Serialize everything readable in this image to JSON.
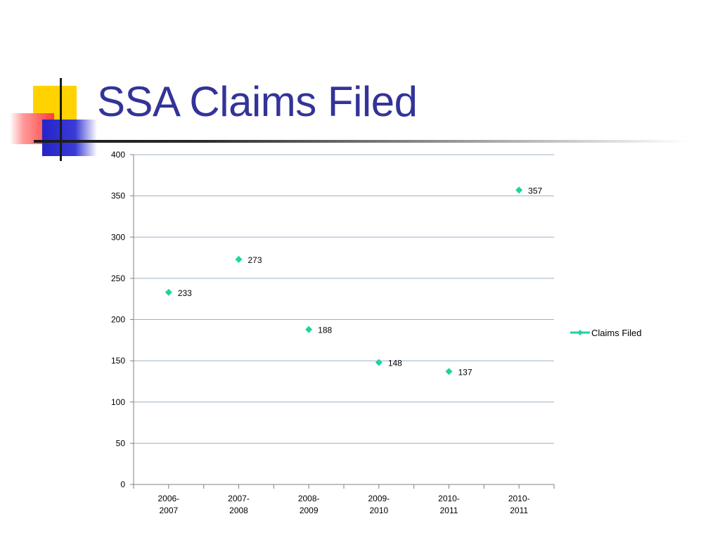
{
  "slide": {
    "title": "SSA Claims Filed"
  },
  "colors": {
    "title": "#333399",
    "series": "#1fd3a0",
    "grid": "#9fb0c8",
    "axis": "#808080",
    "text": "#000000"
  },
  "chart_data": {
    "type": "line",
    "title": "",
    "xlabel": "",
    "ylabel": "",
    "categories": [
      "2006-2007",
      "2007-2008",
      "2008-2009",
      "2009-2010",
      "2010-2011",
      "2010-2011"
    ],
    "category_lines": [
      [
        "2006-",
        "2007"
      ],
      [
        "2007-",
        "2008"
      ],
      [
        "2008-",
        "2009"
      ],
      [
        "2009-",
        "2010"
      ],
      [
        "2010-",
        "2011"
      ],
      [
        "2010-",
        "2011"
      ]
    ],
    "series": [
      {
        "name": "Claims Filed",
        "values": [
          233,
          273,
          188,
          148,
          137,
          357
        ],
        "marker": "diamond",
        "line": false
      }
    ],
    "data_labels": [
      "233",
      "273",
      "188",
      "148",
      "137",
      "357"
    ],
    "ylim": [
      0,
      400
    ],
    "y_ticks": [
      0,
      50,
      100,
      150,
      200,
      250,
      300,
      350,
      400
    ],
    "y_tick_labels": [
      "0",
      "50",
      "100",
      "150",
      "200",
      "250",
      "300",
      "350",
      "400"
    ],
    "grid": true,
    "legend": {
      "position": "right",
      "label": "Claims Filed"
    }
  }
}
